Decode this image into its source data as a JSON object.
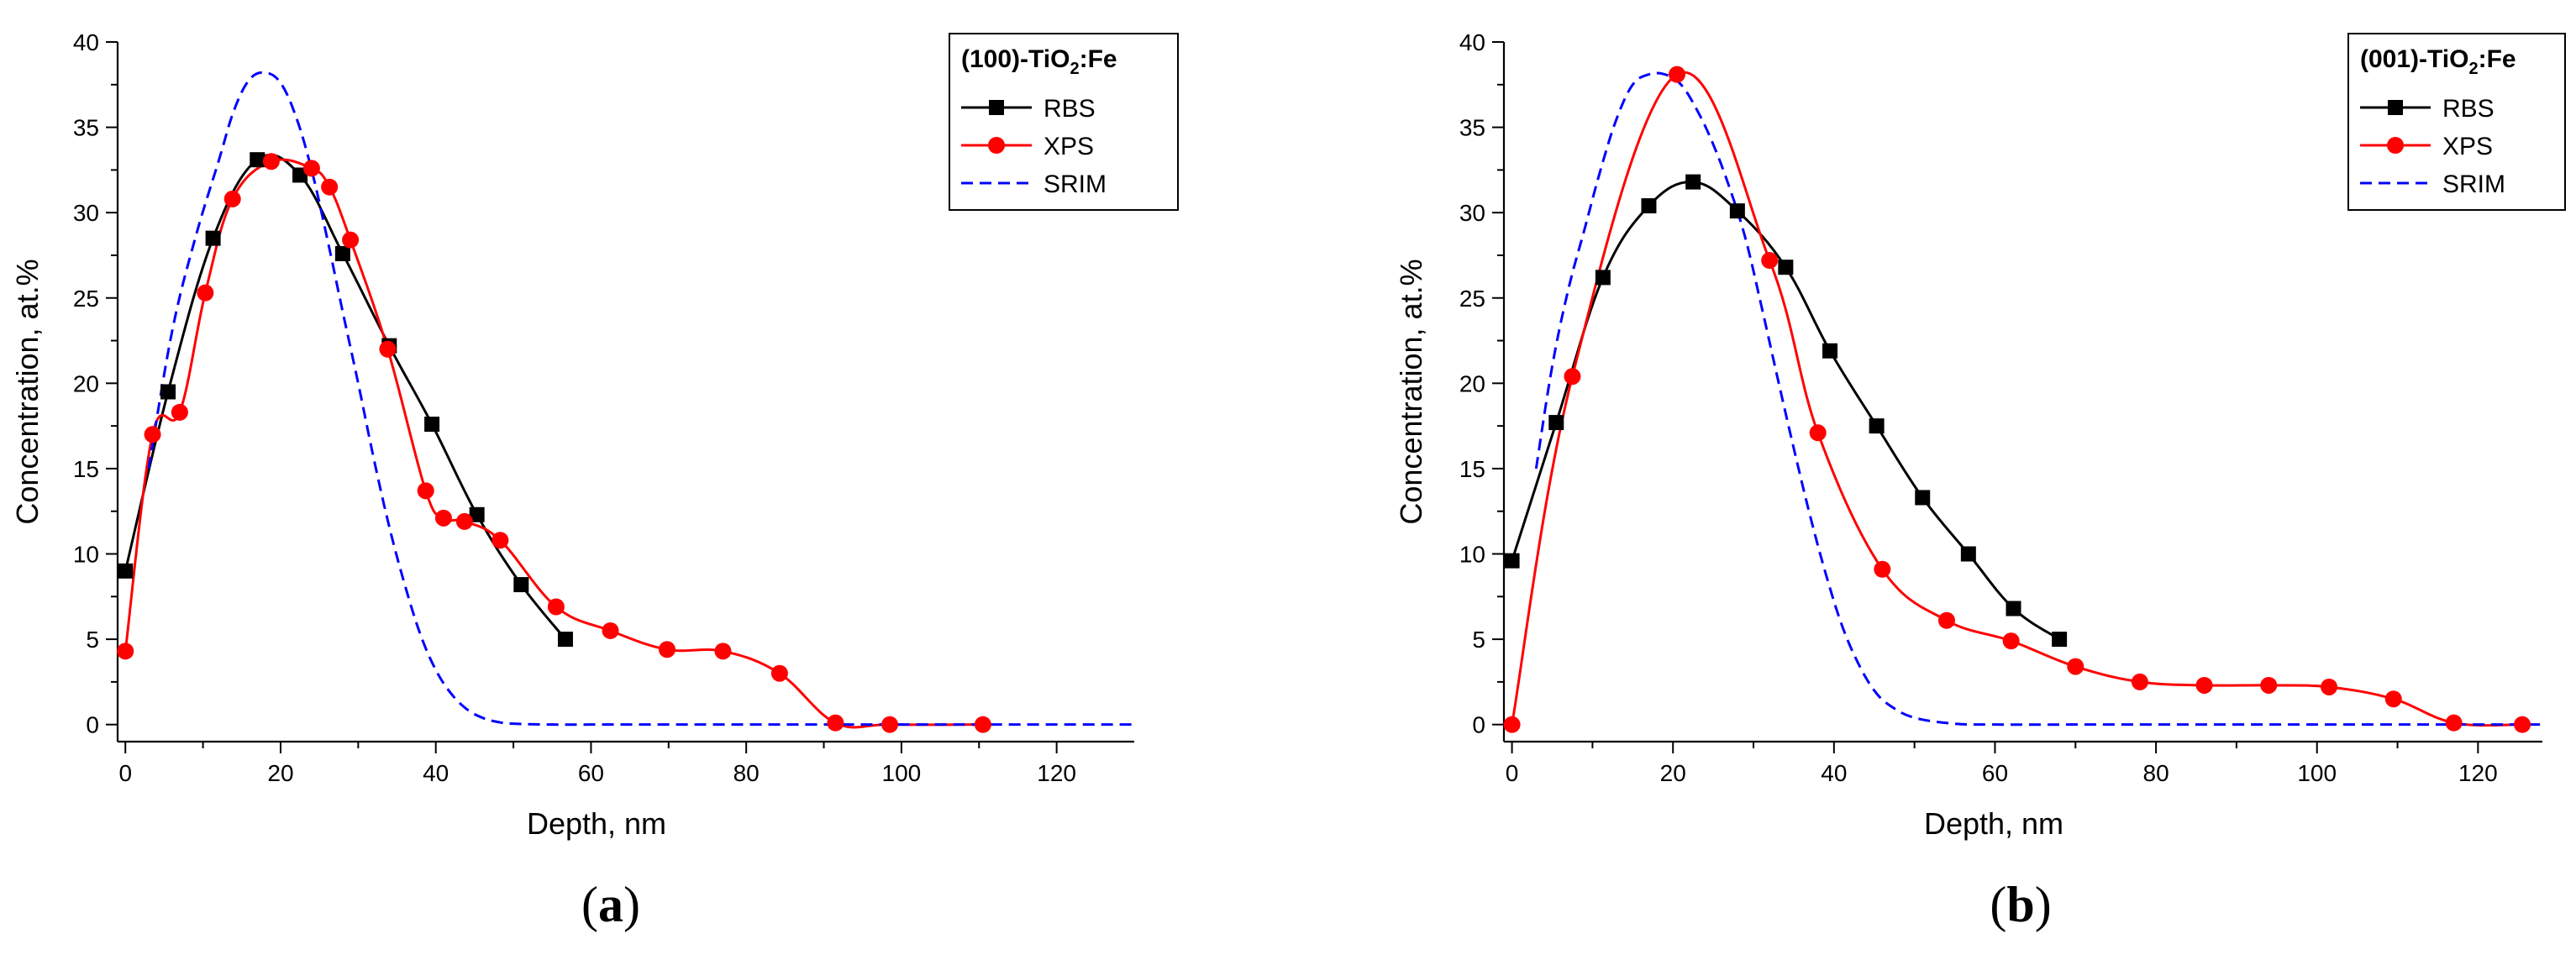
{
  "chart_data": [
    {
      "type": "line",
      "panel_label_open": "(",
      "panel_label_letter": "a",
      "panel_label_close": ")",
      "legend_title": "(100)-TiO",
      "legend_title_sub": "2",
      "legend_title_tail": ":Fe",
      "legend_position": "top-right",
      "xlabel": "Depth, nm",
      "ylabel": "Concentration, at.%",
      "xlim": [
        -1,
        130
      ],
      "ylim": [
        -1,
        40
      ],
      "xticks": [
        0,
        20,
        40,
        60,
        80,
        100,
        120
      ],
      "yticks": [
        0,
        5,
        10,
        15,
        20,
        25,
        30,
        35,
        40
      ],
      "grid": false,
      "series": [
        {
          "name": "RBS",
          "color": "#000000",
          "marker": "square",
          "style": "solid",
          "x": [
            0,
            5.5,
            11.3,
            17,
            22.5,
            28,
            34,
            39.5,
            45.3,
            51,
            56.7
          ],
          "y": [
            9,
            19.5,
            28.5,
            33.1,
            32.2,
            27.6,
            22.2,
            17.6,
            12.3,
            8.2,
            5
          ]
        },
        {
          "name": "XPS",
          "color": "#ff0000",
          "marker": "circle",
          "style": "solid",
          "x": [
            0,
            3.5,
            7,
            10.3,
            13.8,
            18.8,
            24,
            26.3,
            29,
            33.8,
            38.7,
            41,
            43.7,
            48.3,
            55.5,
            62.5,
            69.8,
            77,
            84.3,
            91.5,
            98.5,
            110.5
          ],
          "y": [
            4.3,
            17,
            18.3,
            25.3,
            30.8,
            33,
            32.6,
            31.5,
            28.4,
            22,
            13.7,
            12.1,
            11.9,
            10.8,
            6.9,
            5.5,
            4.4,
            4.3,
            3,
            0.1,
            0,
            0
          ]
        },
        {
          "name": "SRIM",
          "color": "#0000ff",
          "marker": "none",
          "style": "dashed",
          "x": [
            3,
            6,
            9,
            12,
            14,
            16,
            18,
            20,
            22,
            24,
            26,
            28,
            30,
            32,
            34,
            36,
            38,
            40,
            42,
            44,
            46,
            48,
            50,
            55,
            60,
            70,
            80,
            100,
            130
          ],
          "y": [
            15,
            23,
            28.5,
            33,
            36,
            37.8,
            38.2,
            37.6,
            35.6,
            32.5,
            28.5,
            24.2,
            20,
            15.6,
            11.6,
            8.2,
            5.3,
            3.2,
            1.8,
            0.9,
            0.4,
            0.15,
            0.05,
            0,
            0,
            0,
            0,
            0,
            0
          ]
        }
      ]
    },
    {
      "type": "line",
      "panel_label_open": "(",
      "panel_label_letter": "b",
      "panel_label_close": ")",
      "legend_title": "(001)-TiO",
      "legend_title_sub": "2",
      "legend_title_tail": ":Fe",
      "legend_position": "top-right",
      "xlabel": "Depth, nm",
      "ylabel": "Concentration, at.%",
      "xlim": [
        -1,
        128
      ],
      "ylim": [
        -1,
        40
      ],
      "xticks": [
        0,
        20,
        40,
        60,
        80,
        100,
        120
      ],
      "yticks": [
        0,
        5,
        10,
        15,
        20,
        25,
        30,
        35,
        40
      ],
      "grid": false,
      "series": [
        {
          "name": "RBS",
          "color": "#000000",
          "marker": "square",
          "style": "solid",
          "x": [
            0,
            5.5,
            11.3,
            17,
            22.5,
            28,
            34,
            39.5,
            45.3,
            51,
            56.7,
            62.3,
            68
          ],
          "y": [
            9.6,
            17.7,
            26.2,
            30.4,
            31.8,
            30.1,
            26.8,
            21.9,
            17.5,
            13.3,
            10,
            6.8,
            5
          ]
        },
        {
          "name": "XPS",
          "color": "#ff0000",
          "marker": "circle",
          "style": "solid",
          "x": [
            0,
            7.5,
            20.5,
            32,
            38,
            46,
            54,
            62,
            70,
            78,
            86,
            94,
            101.5,
            109.5,
            117,
            125.5
          ],
          "y": [
            0,
            20.4,
            38.1,
            27.2,
            17.1,
            9.1,
            6.1,
            4.9,
            3.4,
            2.5,
            2.3,
            2.3,
            2.2,
            1.5,
            0.1,
            0
          ]
        },
        {
          "name": "SRIM",
          "color": "#0000ff",
          "marker": "none",
          "style": "dashed",
          "x": [
            3,
            5,
            7,
            9,
            11,
            13,
            15,
            17,
            19,
            21,
            23,
            25,
            27,
            29,
            31,
            33,
            35,
            37,
            39,
            41,
            43,
            45,
            47,
            50,
            55,
            60,
            70,
            90,
            110,
            128
          ],
          "y": [
            15,
            21,
            25.5,
            29,
            32.5,
            35.5,
            37.5,
            38.1,
            38.1,
            37.5,
            36,
            34,
            31.5,
            28.5,
            24.5,
            20.3,
            16.2,
            12.3,
            8.8,
            5.8,
            3.6,
            2,
            1.1,
            0.4,
            0.05,
            0,
            0,
            0,
            0,
            0
          ]
        }
      ]
    }
  ]
}
